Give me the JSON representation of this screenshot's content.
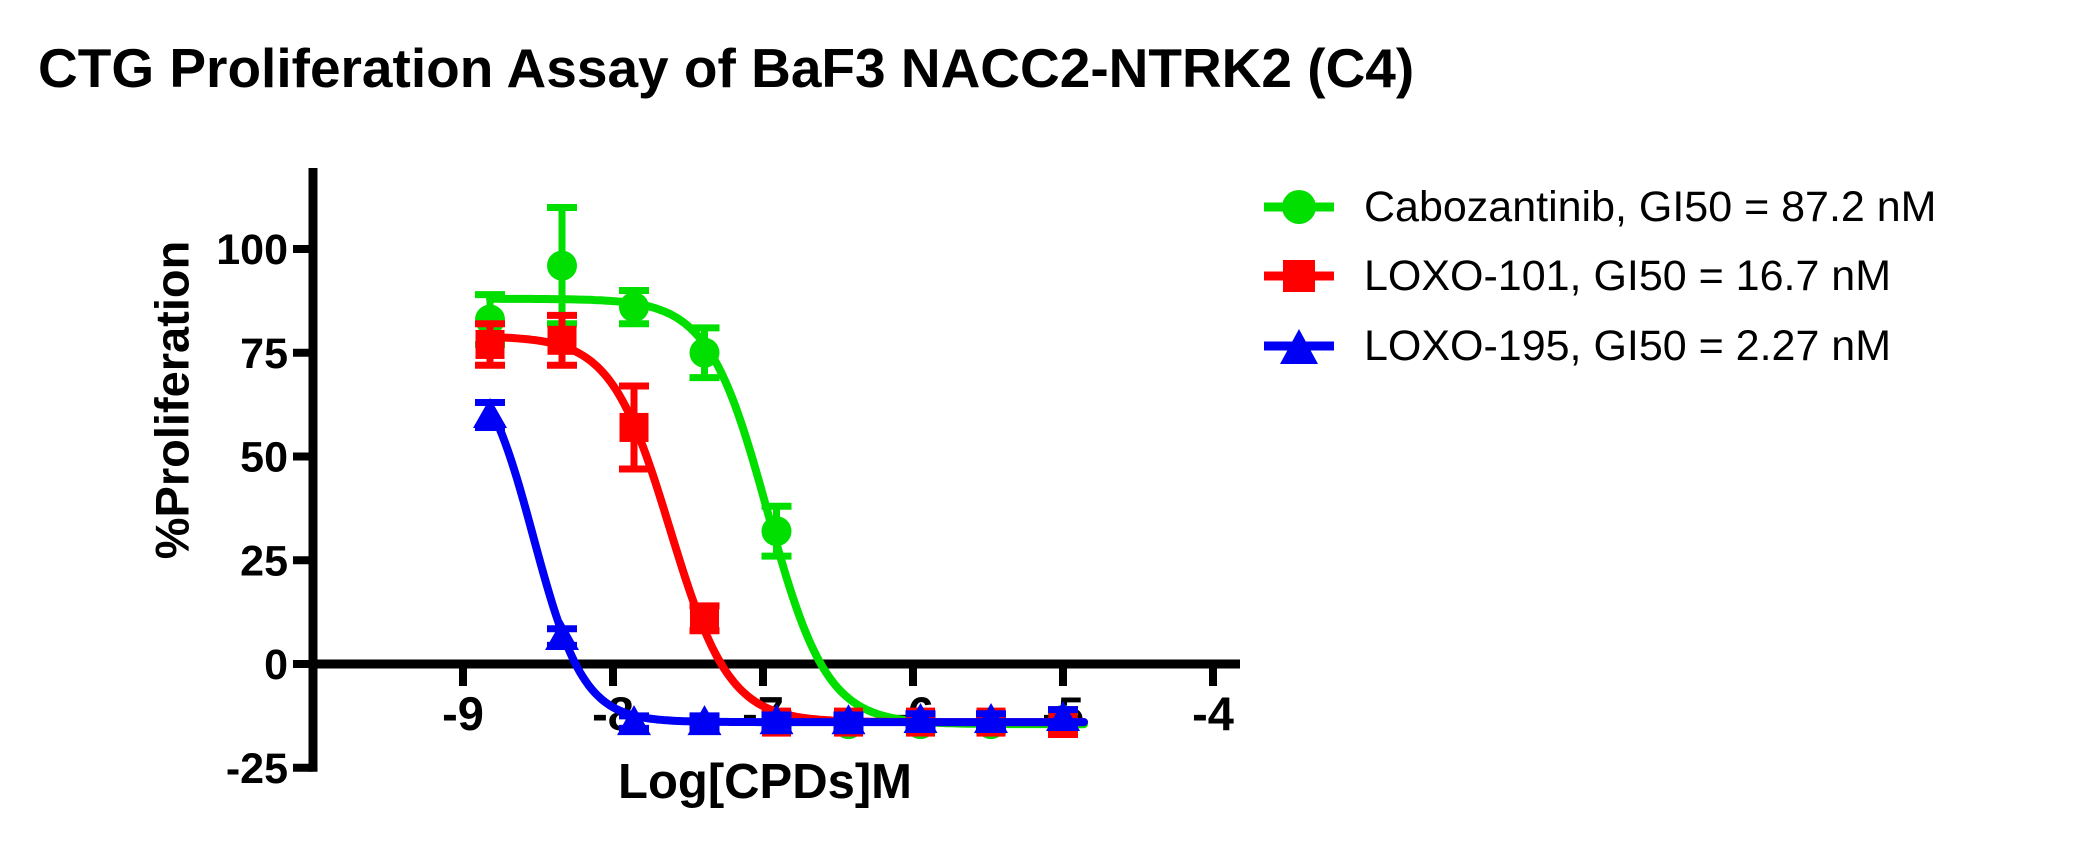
{
  "chart_data": {
    "type": "scatter-line",
    "subtype": "dose-response-curves",
    "title": "CTG Proliferation Assay of BaF3 NACC2-NTRK2 (C4)",
    "xlabel": "Log[CPDs]M",
    "ylabel": "%Proliferation",
    "x_ticks": [
      -9,
      -8,
      -7,
      -6,
      -5,
      -4
    ],
    "y_ticks": [
      100,
      75,
      50,
      25,
      0,
      -25
    ],
    "xlim": [
      -10,
      -3.85
    ],
    "ylim": [
      -26,
      119
    ],
    "grid": false,
    "legend_position": "right-outside",
    "x_log_concentration": [
      -8.82,
      -8.34,
      -7.86,
      -7.39,
      -6.91,
      -6.43,
      -5.95,
      -5.48,
      -5.0
    ],
    "series": [
      {
        "name": "Cabozantinib",
        "legend_label": "Cabozantinib, GI50 = 87.2 nM",
        "gi50_nM": 87.2,
        "color": "#00DF00",
        "marker": "circle",
        "values": [
          83,
          96,
          86,
          75,
          32,
          -14.5,
          -14.5,
          -14.5,
          -13.5
        ],
        "errors": [
          6,
          14,
          4,
          6,
          6,
          1.5,
          1.5,
          1.5,
          2
        ],
        "fit": {
          "top": 88,
          "bottom": -14.5,
          "log_mid": -6.97,
          "hill": 2.2
        }
      },
      {
        "name": "LOXO-101",
        "legend_label": "LOXO-101, GI50 = 16.7 nM",
        "gi50_nM": 16.7,
        "color": "#FF0000",
        "marker": "square",
        "values": [
          77,
          78,
          57,
          11,
          -14,
          -14,
          -14,
          -14,
          -14
        ],
        "errors": [
          5,
          6,
          10,
          3,
          2,
          1.5,
          1.5,
          1.5,
          3
        ],
        "fit": {
          "top": 79,
          "bottom": -14,
          "log_mid": -7.62,
          "hill": 2.2
        }
      },
      {
        "name": "LOXO-195",
        "legend_label": "LOXO-195, GI50 = 2.27 nM",
        "gi50_nM": 2.27,
        "color": "#0000F5",
        "marker": "triangle",
        "values": [
          60,
          6.5,
          -14,
          -14,
          -13.8,
          -13.8,
          -13.5,
          -13.5,
          -13
        ],
        "errors": [
          3,
          2,
          1.5,
          1.5,
          1.5,
          1.5,
          1.5,
          1.5,
          2
        ],
        "fit": {
          "top": 75,
          "bottom": -14,
          "log_mid": -8.53,
          "hill": 2.6
        }
      }
    ],
    "axis_color": "#000000"
  }
}
